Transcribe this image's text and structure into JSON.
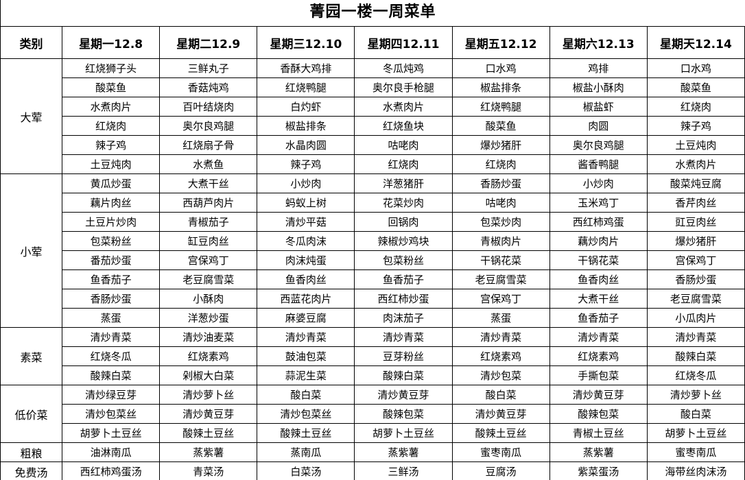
{
  "title": "菁园一楼一周菜单",
  "table": {
    "category_header": "类别",
    "day_headers": [
      "星期一12.8",
      "星期二12.9",
      "星期三12.10",
      "星期四12.11",
      "星期五12.12",
      "星期六12.13",
      "星期天12.14"
    ],
    "sections": [
      {
        "category": "大荤",
        "rows": [
          [
            "红烧狮子头",
            "三鲜丸子",
            "香酥大鸡排",
            "冬瓜炖鸡",
            "口水鸡",
            "鸡排",
            "口水鸡"
          ],
          [
            "酸菜鱼",
            "香菇炖鸡",
            "红烧鸭腿",
            "奥尔良手枪腿",
            "椒盐排条",
            "椒盐小酥肉",
            "酸菜鱼"
          ],
          [
            "水煮肉片",
            "百叶结烧肉",
            "白灼虾",
            "水煮肉片",
            "红烧鸭腿",
            "椒盐虾",
            "红烧肉"
          ],
          [
            "红烧肉",
            "奥尔良鸡腿",
            "椒盐排条",
            "红烧鱼块",
            "酸菜鱼",
            "肉圆",
            "辣子鸡"
          ],
          [
            "辣子鸡",
            "红烧扇子骨",
            "水晶肉圆",
            "咕咾肉",
            "爆炒猪肝",
            "奥尔良鸡腿",
            "土豆炖肉"
          ],
          [
            "土豆炖肉",
            "水煮鱼",
            "辣子鸡",
            "红烧肉",
            "红烧肉",
            "酱香鸭腿",
            "水煮肉片"
          ]
        ]
      },
      {
        "category": "小荤",
        "rows": [
          [
            "黄瓜炒蛋",
            "大煮干丝",
            "小炒肉",
            "洋葱猪肝",
            "香肠炒蛋",
            "小炒肉",
            "酸菜炖豆腐"
          ],
          [
            "藕片肉丝",
            "西葫芦肉片",
            "蚂蚁上树",
            "花菜炒肉",
            "咕咾肉",
            "玉米鸡丁",
            "香芹肉丝"
          ],
          [
            "土豆片炒肉",
            "青椒茄子",
            "清炒平菇",
            "回锅肉",
            "包菜炒肉",
            "西红柿鸡蛋",
            "豇豆肉丝"
          ],
          [
            "包菜粉丝",
            "缸豆肉丝",
            "冬瓜肉沫",
            "辣椒炒鸡块",
            "青椒肉片",
            "藕炒肉片",
            "爆炒猪肝"
          ],
          [
            "番茄炒蛋",
            "宫保鸡丁",
            "肉沫炖蛋",
            "包菜粉丝",
            "干锅花菜",
            "干锅花菜",
            "宫保鸡丁"
          ],
          [
            "鱼香茄子",
            "老豆腐雪菜",
            "鱼香肉丝",
            "鱼香茄子",
            "老豆腐雪菜",
            "鱼香肉丝",
            "香肠炒蛋"
          ],
          [
            "香肠炒蛋",
            "小酥肉",
            "西蓝花肉片",
            "西红柿炒蛋",
            "宫保鸡丁",
            "大煮干丝",
            "老豆腐雪菜"
          ],
          [
            "蒸蛋",
            "洋葱炒蛋",
            "麻婆豆腐",
            "肉沫茄子",
            "蒸蛋",
            "鱼香茄子",
            "小瓜肉片"
          ]
        ]
      },
      {
        "category": "素菜",
        "rows": [
          [
            "清炒青菜",
            "清炒油麦菜",
            "清炒青菜",
            "清炒青菜",
            "清炒青菜",
            "清炒青菜",
            "清炒青菜"
          ],
          [
            "红烧冬瓜",
            "红烧素鸡",
            "鼓油包菜",
            "豆芽粉丝",
            "红烧素鸡",
            "红烧素鸡",
            "酸辣白菜"
          ],
          [
            "酸辣白菜",
            "剁椒大白菜",
            "蒜泥生菜",
            "酸辣白菜",
            "清炒包菜",
            "手撕包菜",
            "红烧冬瓜"
          ]
        ]
      },
      {
        "category": "低价菜",
        "rows": [
          [
            "清炒绿豆芽",
            "清炒萝卜丝",
            "酸白菜",
            "清炒黄豆芽",
            "酸白菜",
            "清炒黄豆芽",
            "清炒萝卜丝"
          ],
          [
            "清炒包菜丝",
            "清炒黄豆芽",
            "清炒包菜丝",
            "酸辣包菜",
            "清炒黄豆芽",
            "酸辣包菜",
            "酸白菜"
          ],
          [
            "胡萝卜土豆丝",
            "酸辣土豆丝",
            "酸辣土豆丝",
            "胡萝卜土豆丝",
            "酸辣土豆丝",
            "青椒土豆丝",
            "胡萝卜土豆丝"
          ]
        ]
      },
      {
        "category": "粗粮",
        "rows": [
          [
            "油淋南瓜",
            "蒸紫薯",
            "蒸南瓜",
            "蒸紫薯",
            "蜜枣南瓜",
            "蒸紫薯",
            "蜜枣南瓜"
          ]
        ]
      },
      {
        "category": "免费汤",
        "rows": [
          [
            "西红柿鸡蛋汤",
            "青菜汤",
            "白菜汤",
            "三鲜汤",
            "豆腐汤",
            "紫菜蛋汤",
            "海带丝肉沫汤"
          ]
        ]
      }
    ]
  },
  "colors": {
    "border": "#000000",
    "text": "#000000",
    "background": "#ffffff"
  }
}
